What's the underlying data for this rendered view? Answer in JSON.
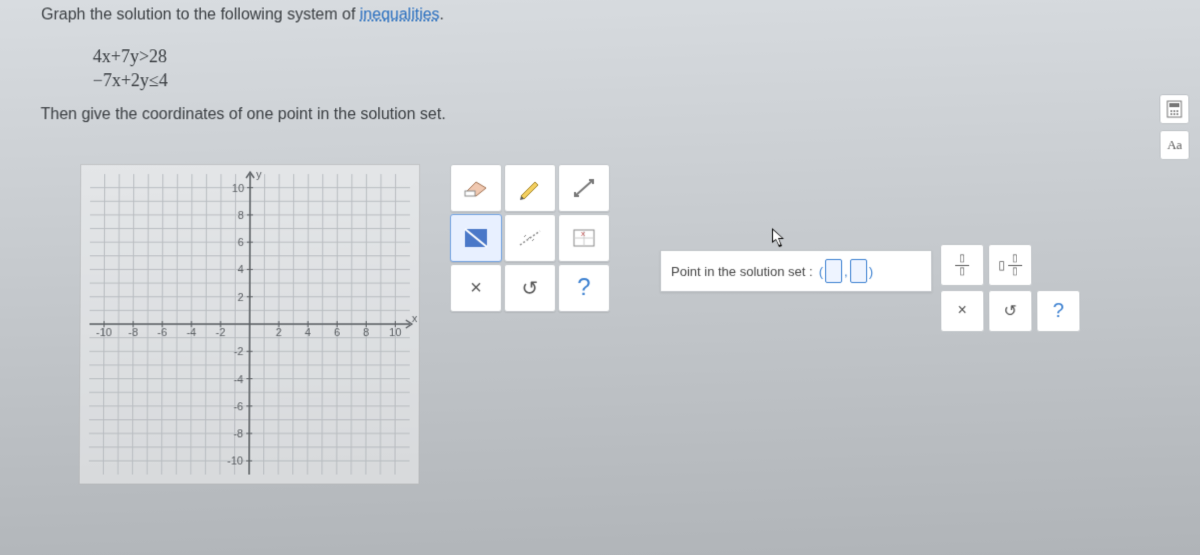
{
  "instruction_prefix": "Graph the solution to the following system of ",
  "instruction_link": "inequalities",
  "instruction_suffix": ".",
  "equations": [
    "4x+7y>28",
    "−7x+2y≤4"
  ],
  "instruction2": "Then give the coordinates of one point in the solution set.",
  "graph": {
    "xmin": -11,
    "xmax": 11,
    "ymin": -11,
    "ymax": 11,
    "tick_step": 2,
    "xlabels": [
      "-10",
      "-8",
      "-6",
      "-4",
      "-2",
      "2",
      "4",
      "6",
      "8",
      "10"
    ],
    "ylabels": [
      "10",
      "8",
      "6",
      "4",
      "2",
      "-2",
      "-4",
      "-6",
      "-8",
      "-10"
    ],
    "axis_x_label": "x",
    "axis_y_label": "y"
  },
  "tools": {
    "eraser": "eraser",
    "pencil": "pencil",
    "line": "line",
    "fill_shape": "fill",
    "no_fill": "no-fill",
    "region": "region",
    "close": "×",
    "undo": "↺",
    "help": "?"
  },
  "answer_label": "Point in the solution set :",
  "mini": {
    "frac": "▯/▯",
    "mixed": "▯ ▯/▯",
    "close": "×",
    "undo": "↺",
    "help": "?"
  },
  "side": {
    "calc": "calc",
    "font": "Aa"
  },
  "colors": {
    "link": "#2a6fbf",
    "accent": "#3a7fd0",
    "grid": "#b8bcc0",
    "axis": "#5a5e62"
  }
}
